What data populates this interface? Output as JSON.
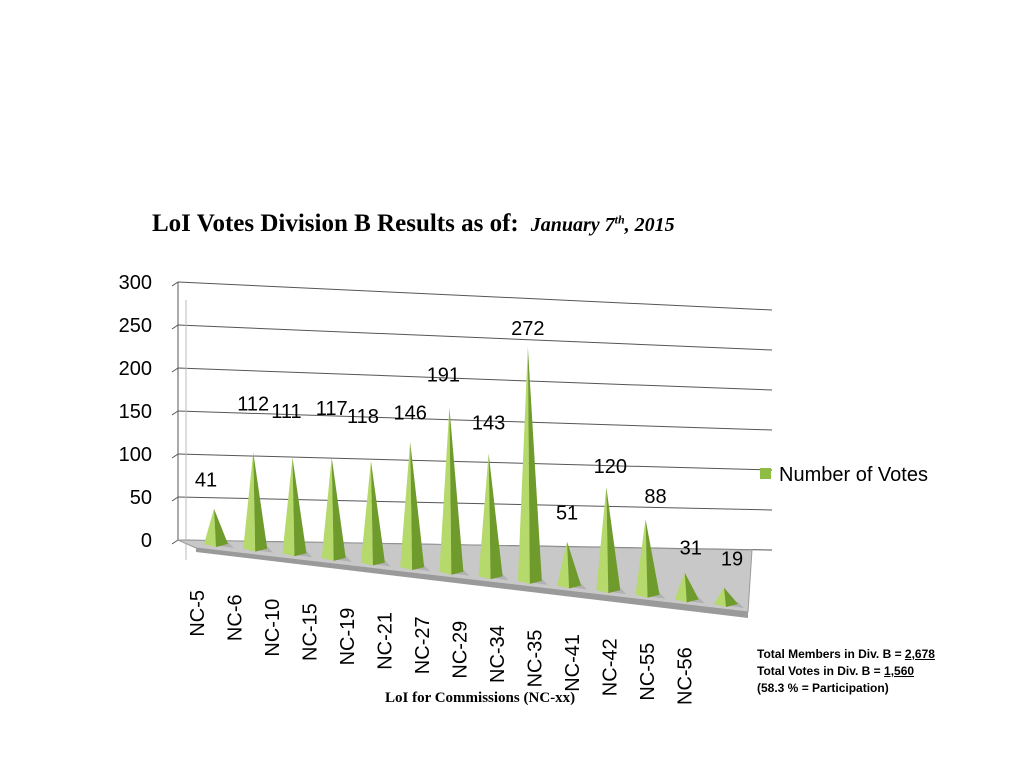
{
  "chart_data": {
    "type": "bar",
    "title": "LoI Votes Division B Results as of:",
    "title_date": "January 7",
    "title_date_sup": "th",
    "title_date_year": ", 2015",
    "xlabel": "LoI for Commissions (NC-xx)",
    "ylabel": "",
    "ylim": [
      0,
      300
    ],
    "yticks": [
      "0",
      "50",
      "100",
      "150",
      "200",
      "250",
      "300"
    ],
    "categories": [
      "NC-5",
      "NC-6",
      "NC-10",
      "NC-15",
      "NC-19",
      "NC-21",
      "NC-27",
      "NC-29",
      "NC-34",
      "NC-35",
      "NC-41",
      "NC-42",
      "NC-55",
      "NC-56"
    ],
    "series": [
      {
        "name": "Number of Votes",
        "values": [
          41,
          112,
          111,
          117,
          118,
          146,
          191,
          143,
          272,
          51,
          120,
          88,
          31,
          19
        ],
        "labels": [
          "41",
          "112",
          "111",
          "117",
          "118",
          "146",
          "191",
          "143",
          "272",
          "51",
          "120",
          "88",
          "31",
          "19"
        ]
      }
    ],
    "grid": true,
    "legend_position": "right",
    "colors": {
      "bar_light": "#b5d96a",
      "bar_dark": "#6f9a2c",
      "bar_mid": "#8fbc45",
      "grid": "#555555",
      "floor": "#c8c8c8"
    }
  },
  "notes": {
    "members_prefix": "Total Members in Div. B = ",
    "members_value": "2,678",
    "votes_prefix": "Total Votes in Div. B = ",
    "votes_value": "1,560",
    "participation": "(58.3 % = Participation)"
  }
}
